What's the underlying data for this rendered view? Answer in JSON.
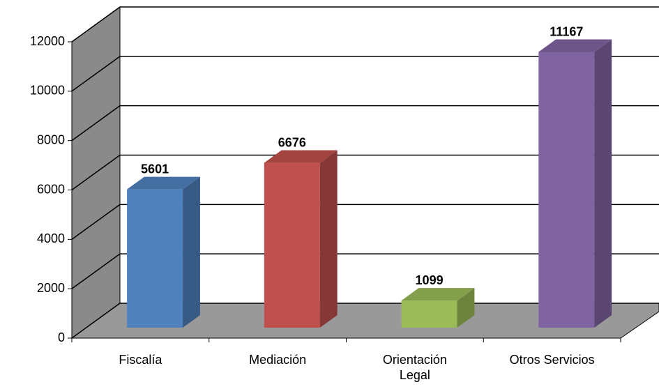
{
  "chart_data": {
    "type": "bar3d",
    "categories": [
      "Fiscalía",
      "Mediación",
      "Orientación\nLegal",
      "Otros Servicios"
    ],
    "values": [
      5601,
      6676,
      1099,
      11167
    ],
    "colors": [
      "#4f81bd",
      "#c0504d",
      "#9bbb59",
      "#8064a2"
    ],
    "ylim": [
      0,
      12000
    ],
    "yticks": [
      0,
      2000,
      4000,
      6000,
      8000,
      10000,
      12000
    ],
    "grid": true
  }
}
